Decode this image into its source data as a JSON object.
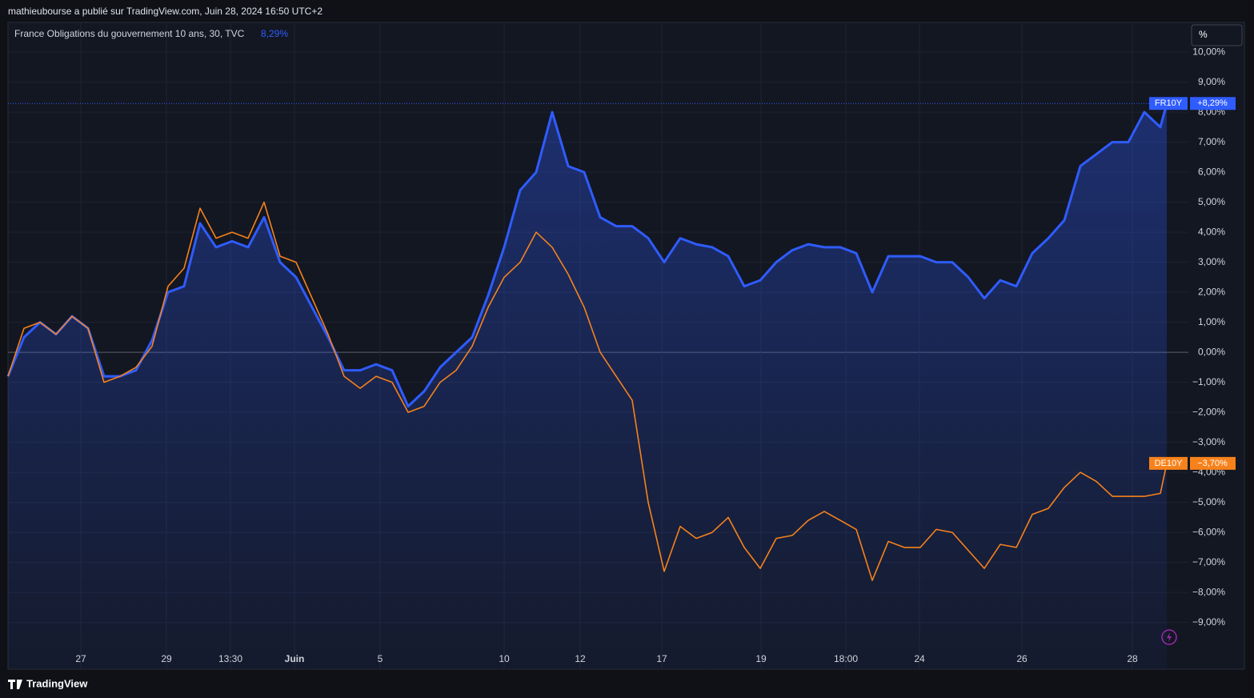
{
  "header": "mathieubourse a publié sur TradingView.com, Juin 28, 2024 16:50 UTC+2",
  "footer": "TradingView",
  "scale_button": "%",
  "chart_data": {
    "type": "line",
    "title": "France Obligations du gouvernement 10 ans, 30, TVC",
    "title_value_label": "8,29%",
    "x": [
      0,
      2,
      4,
      6,
      8,
      10,
      12,
      14,
      16,
      18,
      20,
      22,
      24,
      26,
      28,
      30,
      32,
      34,
      36,
      38,
      40,
      42,
      44,
      46,
      48,
      50,
      52,
      54,
      56,
      58,
      60,
      62,
      64,
      66,
      68,
      70,
      72,
      74,
      76,
      78,
      80,
      82,
      84,
      86,
      88,
      90,
      92,
      94,
      96,
      98,
      100,
      102,
      104,
      106,
      108,
      110,
      112,
      114,
      116,
      118,
      120,
      122,
      124,
      126,
      128,
      130,
      132,
      134,
      136,
      138,
      140,
      142,
      144,
      144.8
    ],
    "series": [
      {
        "name": "FR10Y",
        "color": "#2f5cff",
        "area": true,
        "last_value_label": "+8,29%",
        "values": [
          -0.8,
          0.5,
          1.0,
          0.6,
          1.2,
          0.8,
          -0.8,
          -0.8,
          -0.6,
          0.4,
          2.0,
          2.2,
          4.3,
          3.5,
          3.7,
          3.5,
          4.5,
          3.0,
          2.5,
          1.5,
          0.5,
          -0.6,
          -0.6,
          -0.4,
          -0.6,
          -1.8,
          -1.3,
          -0.5,
          0.0,
          0.5,
          1.9,
          3.5,
          5.4,
          6.0,
          8.0,
          6.2,
          6.0,
          4.5,
          4.2,
          4.2,
          3.8,
          3.0,
          3.8,
          3.6,
          3.5,
          3.2,
          2.2,
          2.4,
          3.0,
          3.4,
          3.6,
          3.5,
          3.5,
          3.3,
          2.0,
          3.2,
          3.2,
          3.2,
          3.0,
          3.0,
          2.5,
          1.8,
          2.4,
          2.2,
          3.3,
          3.8,
          4.4,
          6.2,
          6.6,
          7.0,
          7.0,
          8.0,
          7.5,
          8.29
        ]
      },
      {
        "name": "DE10Y",
        "color": "#f7821b",
        "area": false,
        "last_value_label": "−3,70%",
        "values": [
          -0.8,
          0.8,
          1.0,
          0.6,
          1.2,
          0.8,
          -1.0,
          -0.8,
          -0.5,
          0.2,
          2.2,
          2.8,
          4.8,
          3.8,
          4.0,
          3.8,
          5.0,
          3.2,
          3.0,
          1.8,
          0.6,
          -0.8,
          -1.2,
          -0.8,
          -1.0,
          -2.0,
          -1.8,
          -1.0,
          -0.6,
          0.2,
          1.5,
          2.5,
          3.0,
          4.0,
          3.5,
          2.6,
          1.5,
          0.0,
          -0.8,
          -1.6,
          -5.0,
          -7.3,
          -5.8,
          -6.2,
          -6.0,
          -5.5,
          -6.5,
          -7.2,
          -6.2,
          -6.1,
          -5.6,
          -5.3,
          -5.6,
          -5.9,
          -7.6,
          -6.3,
          -6.5,
          -6.5,
          -5.9,
          -6.0,
          -6.6,
          -7.2,
          -6.4,
          -6.5,
          -5.4,
          -5.2,
          -4.5,
          -4.0,
          -4.3,
          -4.8,
          -4.8,
          -4.8,
          -4.7,
          -3.7
        ]
      }
    ],
    "xlim": [
      0,
      147.5
    ],
    "xticks": [
      {
        "value": 9.1,
        "label": "27"
      },
      {
        "value": 19.8,
        "label": "29"
      },
      {
        "value": 27.8,
        "label": "13:30"
      },
      {
        "value": 35.8,
        "label": "Juin",
        "bold": true
      },
      {
        "value": 46.5,
        "label": "5"
      },
      {
        "value": 62,
        "label": "10"
      },
      {
        "value": 71.5,
        "label": "12"
      },
      {
        "value": 81.7,
        "label": "17"
      },
      {
        "value": 94.1,
        "label": "19"
      },
      {
        "value": 104.7,
        "label": "18:00"
      },
      {
        "value": 113.9,
        "label": "24"
      },
      {
        "value": 126.7,
        "label": "26"
      },
      {
        "value": 140.5,
        "label": "28"
      }
    ],
    "ylim": [
      -10.53,
      10.99
    ],
    "yticks": [
      {
        "value": 10,
        "label": "10,00%"
      },
      {
        "value": 9,
        "label": "9,00%"
      },
      {
        "value": 8,
        "label": "8,00%"
      },
      {
        "value": 7,
        "label": "7,00%"
      },
      {
        "value": 6,
        "label": "6,00%"
      },
      {
        "value": 5,
        "label": "5,00%"
      },
      {
        "value": 4,
        "label": "4,00%"
      },
      {
        "value": 3,
        "label": "3,00%"
      },
      {
        "value": 2,
        "label": "2,00%"
      },
      {
        "value": 1,
        "label": "1,00%"
      },
      {
        "value": 0,
        "label": "0,00%"
      },
      {
        "value": -1,
        "label": "−1,00%"
      },
      {
        "value": -2,
        "label": "−2,00%"
      },
      {
        "value": -3,
        "label": "−3,00%"
      },
      {
        "value": -4,
        "label": "−4,00%"
      },
      {
        "value": -5,
        "label": "−5,00%"
      },
      {
        "value": -6,
        "label": "−6,00%"
      },
      {
        "value": -7,
        "label": "−7,00%"
      },
      {
        "value": -8,
        "label": "−8,00%"
      },
      {
        "value": -9,
        "label": "−9,00%"
      }
    ],
    "grid": true
  }
}
